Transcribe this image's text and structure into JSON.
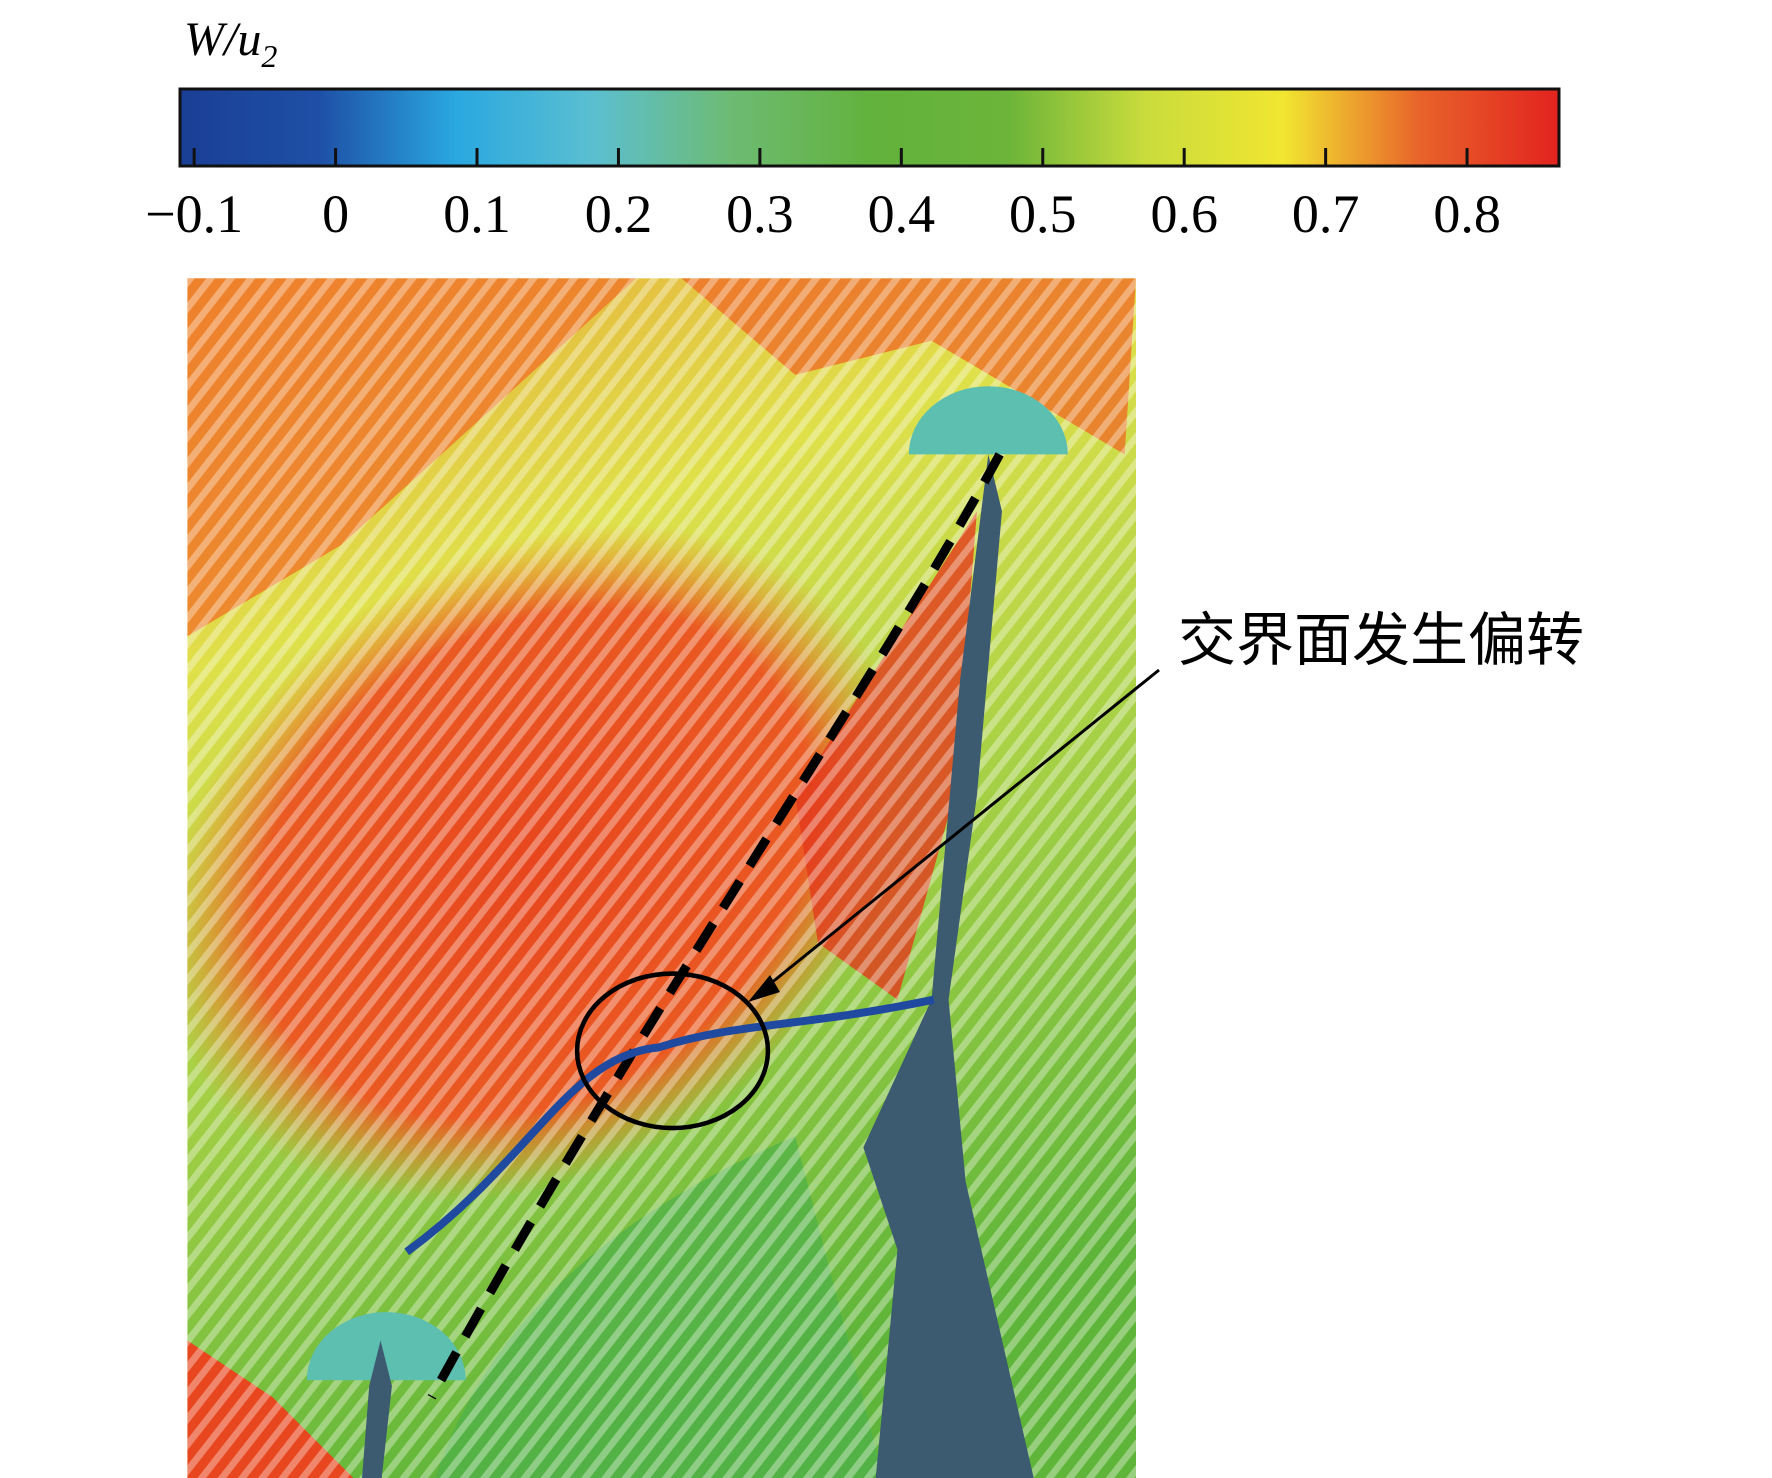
{
  "colorbar": {
    "title": {
      "main": "W/u",
      "subscript": "2"
    },
    "clim": [
      -0.11,
      0.865
    ],
    "colors": [
      "#1a3f95",
      "#1e4fa6",
      "#2aa8e0",
      "#5bbfd0",
      "#6dbb73",
      "#62b23d",
      "#6cb43a",
      "#c9dc3c",
      "#f1e631",
      "#e8622a",
      "#e2231f"
    ],
    "ticks": [
      {
        "value": -0.1,
        "label": "−0.1"
      },
      0,
      0.1,
      0.2,
      0.3,
      0.4,
      0.5,
      0.6,
      0.7,
      0.8
    ]
  },
  "annotation": "交界面发生偏转"
}
